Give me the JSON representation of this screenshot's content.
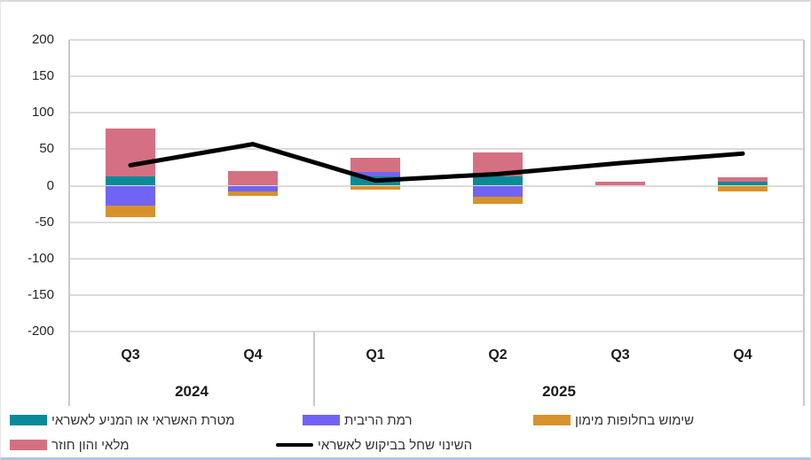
{
  "chart_data": {
    "type": "bar",
    "subtype": "stacked-bars-with-overlay-line",
    "title": "",
    "categories": [
      "Q3",
      "Q4",
      "Q1",
      "Q2",
      "Q3",
      "Q4"
    ],
    "category_groups": [
      {
        "label": "2024",
        "span": 2
      },
      {
        "label": "2025",
        "span": 4
      }
    ],
    "bar_series": [
      {
        "name": "מטרת האשראי או המניע לאשראי",
        "color": "#0A8A99",
        "values": [
          13,
          0,
          13,
          13,
          0,
          5.5
        ]
      },
      {
        "name": "רמת הריבית",
        "color": "#7164F4",
        "values": [
          -27,
          -8.5,
          6,
          -15,
          0,
          0
        ]
      },
      {
        "name": "שימוש בחלופות מימון",
        "color": "#D8922B",
        "values": [
          -16,
          -5,
          -5,
          -10,
          0,
          -8.5
        ]
      },
      {
        "name": "מלאי והון חוזר",
        "color": "#D57083",
        "values": [
          65,
          19.5,
          19,
          32,
          5.5,
          6.5
        ]
      }
    ],
    "line_series": {
      "name": "השינוי שחל בביקוש לאשראי",
      "color": "#000000",
      "values": [
        28,
        57,
        7,
        16,
        31,
        44
      ]
    },
    "y_axis": {
      "min": -200,
      "max": 200,
      "step": 50,
      "ticks": [
        200,
        150,
        100,
        50,
        0,
        -50,
        -100,
        -150,
        -200
      ]
    },
    "grid": true,
    "gridline_color": "#DCDCDC",
    "legend_position": "bottom",
    "legend_rows": [
      [
        0,
        1,
        2
      ],
      [
        3,
        "line"
      ]
    ]
  }
}
